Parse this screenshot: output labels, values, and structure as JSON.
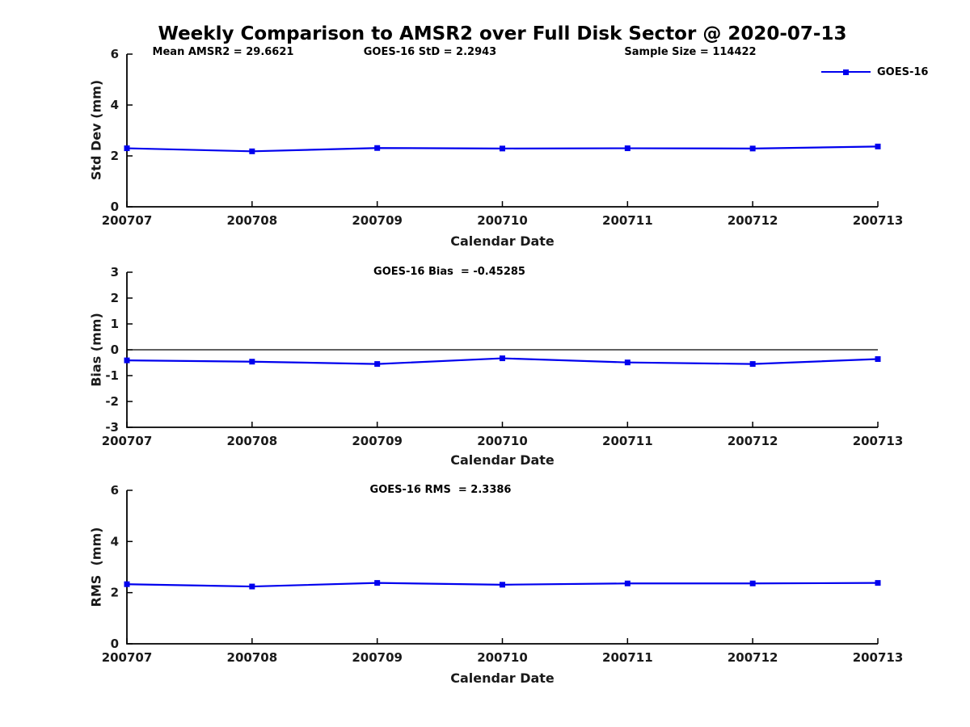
{
  "figure": {
    "title": "Weekly Comparison to AMSR2 over Full Disk Sector @ 2020-07-13",
    "background_color": "#ffffff",
    "accent_color": "#0000ee",
    "axis_color": "#000000"
  },
  "chart_data": [
    {
      "type": "line",
      "name": "std-dev-subplot",
      "categories": [
        "200707",
        "200708",
        "200709",
        "200710",
        "200711",
        "200712",
        "200713"
      ],
      "series": [
        {
          "name": "GOES-16",
          "color": "#0000ee",
          "marker": "square",
          "values": [
            2.3,
            2.18,
            2.31,
            2.29,
            2.3,
            2.29,
            2.37
          ]
        }
      ],
      "xlabel": "Calendar Date",
      "ylabel": "Std Dev (mm)",
      "ylim": [
        0,
        6
      ],
      "yticks": [
        0,
        2,
        4,
        6
      ],
      "grid": false,
      "zero_line": false,
      "legend_position": "top-right",
      "annotations": [
        "Mean AMSR2 = 29.6621",
        "GOES-16 StD = 2.2943",
        "Sample Size = 114422"
      ]
    },
    {
      "type": "line",
      "name": "bias-subplot",
      "categories": [
        "200707",
        "200708",
        "200709",
        "200710",
        "200711",
        "200712",
        "200713"
      ],
      "series": [
        {
          "name": "GOES-16",
          "color": "#0000ee",
          "marker": "square",
          "values": [
            -0.41,
            -0.46,
            -0.55,
            -0.33,
            -0.49,
            -0.55,
            -0.36
          ]
        }
      ],
      "xlabel": "Calendar Date",
      "ylabel": "Bias (mm)",
      "ylim": [
        -3,
        3
      ],
      "yticks": [
        -3,
        -2,
        -1,
        0,
        1,
        2,
        3
      ],
      "grid": false,
      "zero_line": true,
      "annotations": [
        "GOES-16 Bias  = -0.45285"
      ]
    },
    {
      "type": "line",
      "name": "rms-subplot",
      "categories": [
        "200707",
        "200708",
        "200709",
        "200710",
        "200711",
        "200712",
        "200713"
      ],
      "series": [
        {
          "name": "GOES-16",
          "color": "#0000ee",
          "marker": "square",
          "values": [
            2.33,
            2.24,
            2.38,
            2.31,
            2.36,
            2.36,
            2.38
          ]
        }
      ],
      "xlabel": "Calendar Date",
      "ylabel": "RMS  (mm)",
      "ylim": [
        0,
        6
      ],
      "yticks": [
        0,
        2,
        4,
        6
      ],
      "grid": false,
      "zero_line": false,
      "annotations": [
        "GOES-16 RMS  = 2.3386"
      ]
    }
  ]
}
